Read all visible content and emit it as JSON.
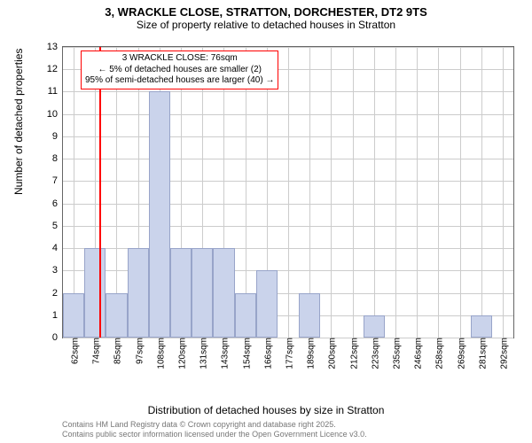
{
  "title": {
    "main": "3, WRACKLE CLOSE, STRATTON, DORCHESTER, DT2 9TS",
    "sub": "Size of property relative to detached houses in Stratton"
  },
  "chart": {
    "type": "histogram",
    "ylabel": "Number of detached properties",
    "xlabel": "Distribution of detached houses by size in Stratton",
    "ylim": [
      0,
      13
    ],
    "ytick_step": 1,
    "x_categories": [
      "62sqm",
      "74sqm",
      "85sqm",
      "97sqm",
      "108sqm",
      "120sqm",
      "131sqm",
      "143sqm",
      "154sqm",
      "166sqm",
      "177sqm",
      "189sqm",
      "200sqm",
      "212sqm",
      "223sqm",
      "235sqm",
      "246sqm",
      "258sqm",
      "269sqm",
      "281sqm",
      "292sqm"
    ],
    "bar_values": [
      2,
      4,
      2,
      4,
      11,
      4,
      4,
      4,
      2,
      3,
      0,
      2,
      0,
      0,
      1,
      0,
      0,
      0,
      0,
      1,
      0
    ],
    "bar_fill": "#cad3eb",
    "bar_border": "#98a4c9",
    "grid_color": "#cccccc",
    "background_color": "#ffffff",
    "axis_color": "#666666",
    "marker": {
      "position_sqm": 76,
      "color": "#ff0000",
      "box_lines": [
        "3 WRACKLE CLOSE: 76sqm",
        "← 5% of detached houses are smaller (2)",
        "95% of semi-detached houses are larger (40) →"
      ]
    }
  },
  "footer": {
    "line1": "Contains HM Land Registry data © Crown copyright and database right 2025.",
    "line2": "Contains public sector information licensed under the Open Government Licence v3.0."
  },
  "fontsize": {
    "title": 13,
    "subtitle": 12,
    "axis_label": 12,
    "tick": 11,
    "xtick": 10,
    "annotation": 10,
    "footer": 9
  }
}
